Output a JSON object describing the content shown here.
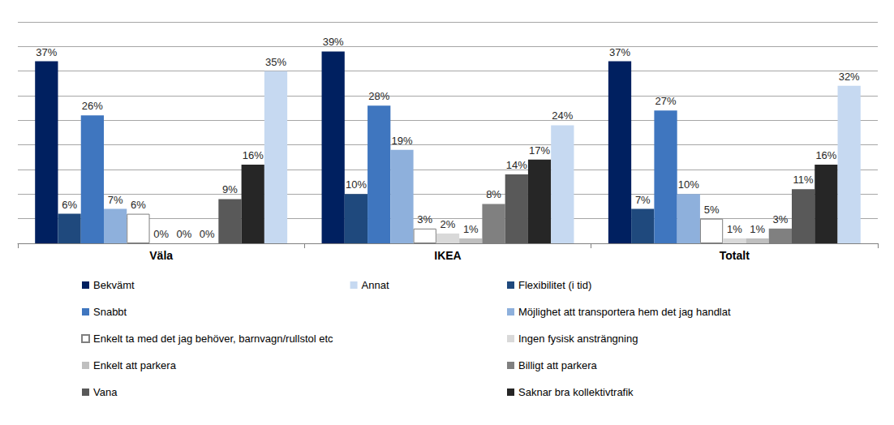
{
  "chart_data": {
    "type": "bar",
    "categories": [
      "Väla",
      "IKEA",
      "Totalt"
    ],
    "series": [
      {
        "name": "Bekvämt",
        "color": "#002060",
        "values": [
          37,
          39,
          37
        ],
        "value_labels": [
          "37%",
          "39%",
          "37%"
        ]
      },
      {
        "name": "Flexibilitet (i tid)",
        "color": "#1f497d",
        "values": [
          6,
          10,
          7
        ],
        "value_labels": [
          "6%",
          "10%",
          "7%"
        ]
      },
      {
        "name": "Snabbt",
        "color": "#3f76bf",
        "values": [
          26,
          28,
          27
        ],
        "value_labels": [
          "26%",
          "28%",
          "27%"
        ]
      },
      {
        "name": "Möjlighet att transportera hem det jag handlat",
        "color": "#8eb0dc",
        "values": [
          7,
          19,
          10
        ],
        "value_labels": [
          "7%",
          "19%",
          "10%"
        ]
      },
      {
        "name": "Enkelt ta med det jag behöver, barnvagn/rullstol etc",
        "color": "#ffffff",
        "values": [
          6,
          3,
          5
        ],
        "value_labels": [
          "6%",
          "3%",
          "5%"
        ]
      },
      {
        "name": "Ingen fysisk ansträngning",
        "color": "#d9d9d9",
        "values": [
          0,
          2,
          1
        ],
        "value_labels": [
          "0%",
          "2%",
          "1%"
        ]
      },
      {
        "name": "Enkelt att parkera",
        "color": "#bfbfbf",
        "values": [
          0,
          1,
          1
        ],
        "value_labels": [
          "0%",
          "1%",
          "1%"
        ]
      },
      {
        "name": "Billigt att parkera",
        "color": "#808080",
        "values": [
          0,
          8,
          3
        ],
        "value_labels": [
          "0%",
          "8%",
          "3%"
        ]
      },
      {
        "name": "Vana",
        "color": "#595959",
        "values": [
          9,
          14,
          11
        ],
        "value_labels": [
          "9%",
          "14%",
          "11%"
        ]
      },
      {
        "name": "Saknar bra kollektivtrafik",
        "color": "#262626",
        "values": [
          16,
          17,
          16
        ],
        "value_labels": [
          "16%",
          "17%",
          "16%"
        ]
      },
      {
        "name": "Annat",
        "color": "#c6d9f1",
        "values": [
          35,
          24,
          32
        ],
        "value_labels": [
          "35%",
          "24%",
          "32%"
        ]
      }
    ],
    "ylim": [
      0,
      45
    ],
    "yticks": [
      0,
      5,
      10,
      15,
      20,
      25,
      30,
      35,
      40,
      45
    ],
    "grid": true,
    "legend": "bottom",
    "data_labels": true,
    "tick_labels": "x"
  }
}
